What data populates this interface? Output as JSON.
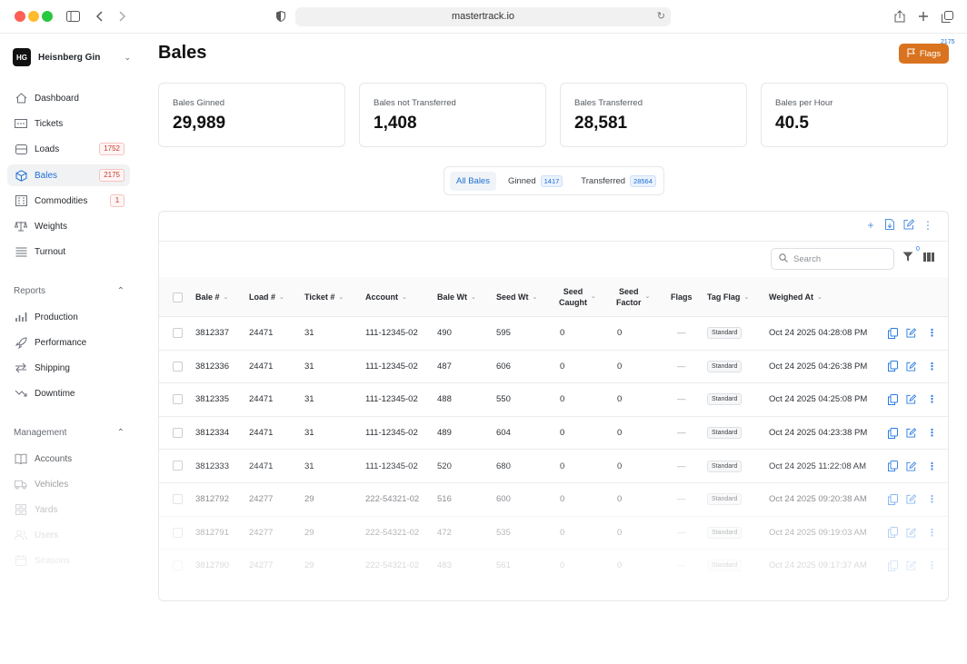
{
  "browser": {
    "url": "mastertrack.io"
  },
  "sidebar": {
    "org_initials": "HG",
    "org_name": "Heisnberg Gin",
    "nav": [
      {
        "label": "Dashboard"
      },
      {
        "label": "Tickets"
      },
      {
        "label": "Loads",
        "count": "1752"
      },
      {
        "label": "Bales",
        "count": "2175"
      },
      {
        "label": "Commodities",
        "count": "1"
      },
      {
        "label": "Weights"
      },
      {
        "label": "Turnout"
      }
    ],
    "reports_title": "Reports",
    "reports": [
      {
        "label": "Production"
      },
      {
        "label": "Performance"
      },
      {
        "label": "Shipping"
      },
      {
        "label": "Downtime"
      }
    ],
    "management_title": "Management",
    "management": [
      {
        "label": "Accounts"
      },
      {
        "label": "Vehicles"
      },
      {
        "label": "Yards"
      },
      {
        "label": "Users"
      },
      {
        "label": "Seasons"
      }
    ]
  },
  "page": {
    "title": "Bales",
    "flags_label": "Flags",
    "flags_count": "2175"
  },
  "stats": [
    {
      "label": "Bales Ginned",
      "value": "29,989"
    },
    {
      "label": "Bales not Transferred",
      "value": "1,408"
    },
    {
      "label": "Bales Transferred",
      "value": "28,581"
    },
    {
      "label": "Bales per Hour",
      "value": "40.5"
    }
  ],
  "segments": [
    {
      "label": "All Bales"
    },
    {
      "label": "Ginned",
      "badge": "1417"
    },
    {
      "label": "Transferred",
      "badge": "28564"
    }
  ],
  "table": {
    "search_placeholder": "Search",
    "filter_count": "0",
    "columns": {
      "bale": "Bale #",
      "load": "Load #",
      "ticket": "Ticket #",
      "account": "Account",
      "bale_wt": "Bale Wt",
      "seed_wt": "Seed Wt",
      "seed_caught_1": "Seed",
      "seed_caught_2": "Caught",
      "seed_factor_1": "Seed",
      "seed_factor_2": "Factor",
      "flags": "Flags",
      "tag_flag": "Tag Flag",
      "weighed_at": "Weighed At"
    },
    "rows": [
      {
        "bale": "3812337",
        "load": "24471",
        "ticket": "31",
        "account": "111-12345-02",
        "bale_wt": "490",
        "seed_wt": "595",
        "seed_caught": "0",
        "seed_factor": "0",
        "flags": "—",
        "tag": "Standard",
        "weighed_at": "Oct 24 2025 04:28:08 PM"
      },
      {
        "bale": "3812336",
        "load": "24471",
        "ticket": "31",
        "account": "111-12345-02",
        "bale_wt": "487",
        "seed_wt": "606",
        "seed_caught": "0",
        "seed_factor": "0",
        "flags": "—",
        "tag": "Standard",
        "weighed_at": "Oct 24 2025 04:26:38 PM"
      },
      {
        "bale": "3812335",
        "load": "24471",
        "ticket": "31",
        "account": "111-12345-02",
        "bale_wt": "488",
        "seed_wt": "550",
        "seed_caught": "0",
        "seed_factor": "0",
        "flags": "—",
        "tag": "Standard",
        "weighed_at": "Oct 24 2025 04:25:08 PM"
      },
      {
        "bale": "3812334",
        "load": "24471",
        "ticket": "31",
        "account": "111-12345-02",
        "bale_wt": "489",
        "seed_wt": "604",
        "seed_caught": "0",
        "seed_factor": "0",
        "flags": "—",
        "tag": "Standard",
        "weighed_at": "Oct 24 2025 04:23:38 PM"
      },
      {
        "bale": "3812333",
        "load": "24471",
        "ticket": "31",
        "account": "111-12345-02",
        "bale_wt": "520",
        "seed_wt": "680",
        "seed_caught": "0",
        "seed_factor": "0",
        "flags": "—",
        "tag": "Standard",
        "weighed_at": "Oct 24 2025 11:22:08 AM"
      },
      {
        "bale": "3812792",
        "load": "24277",
        "ticket": "29",
        "account": "222-54321-02",
        "bale_wt": "516",
        "seed_wt": "600",
        "seed_caught": "0",
        "seed_factor": "0",
        "flags": "—",
        "tag": "Standard",
        "weighed_at": "Oct 24 2025 09:20:38 AM"
      },
      {
        "bale": "3812791",
        "load": "24277",
        "ticket": "29",
        "account": "222-54321-02",
        "bale_wt": "472",
        "seed_wt": "535",
        "seed_caught": "0",
        "seed_factor": "0",
        "flags": "—",
        "tag": "Standard",
        "weighed_at": "Oct 24 2025 09:19:03 AM"
      },
      {
        "bale": "3812790",
        "load": "24277",
        "ticket": "29",
        "account": "222-54321-02",
        "bale_wt": "483",
        "seed_wt": "561",
        "seed_caught": "0",
        "seed_factor": "0",
        "flags": "—",
        "tag": "Standard",
        "weighed_at": "Oct 24 2025 09:17:37 AM"
      }
    ]
  },
  "colors": {
    "accent": "#1e6fd6",
    "flags_button": "#d9731f",
    "count_badge": "#c53a2f"
  }
}
